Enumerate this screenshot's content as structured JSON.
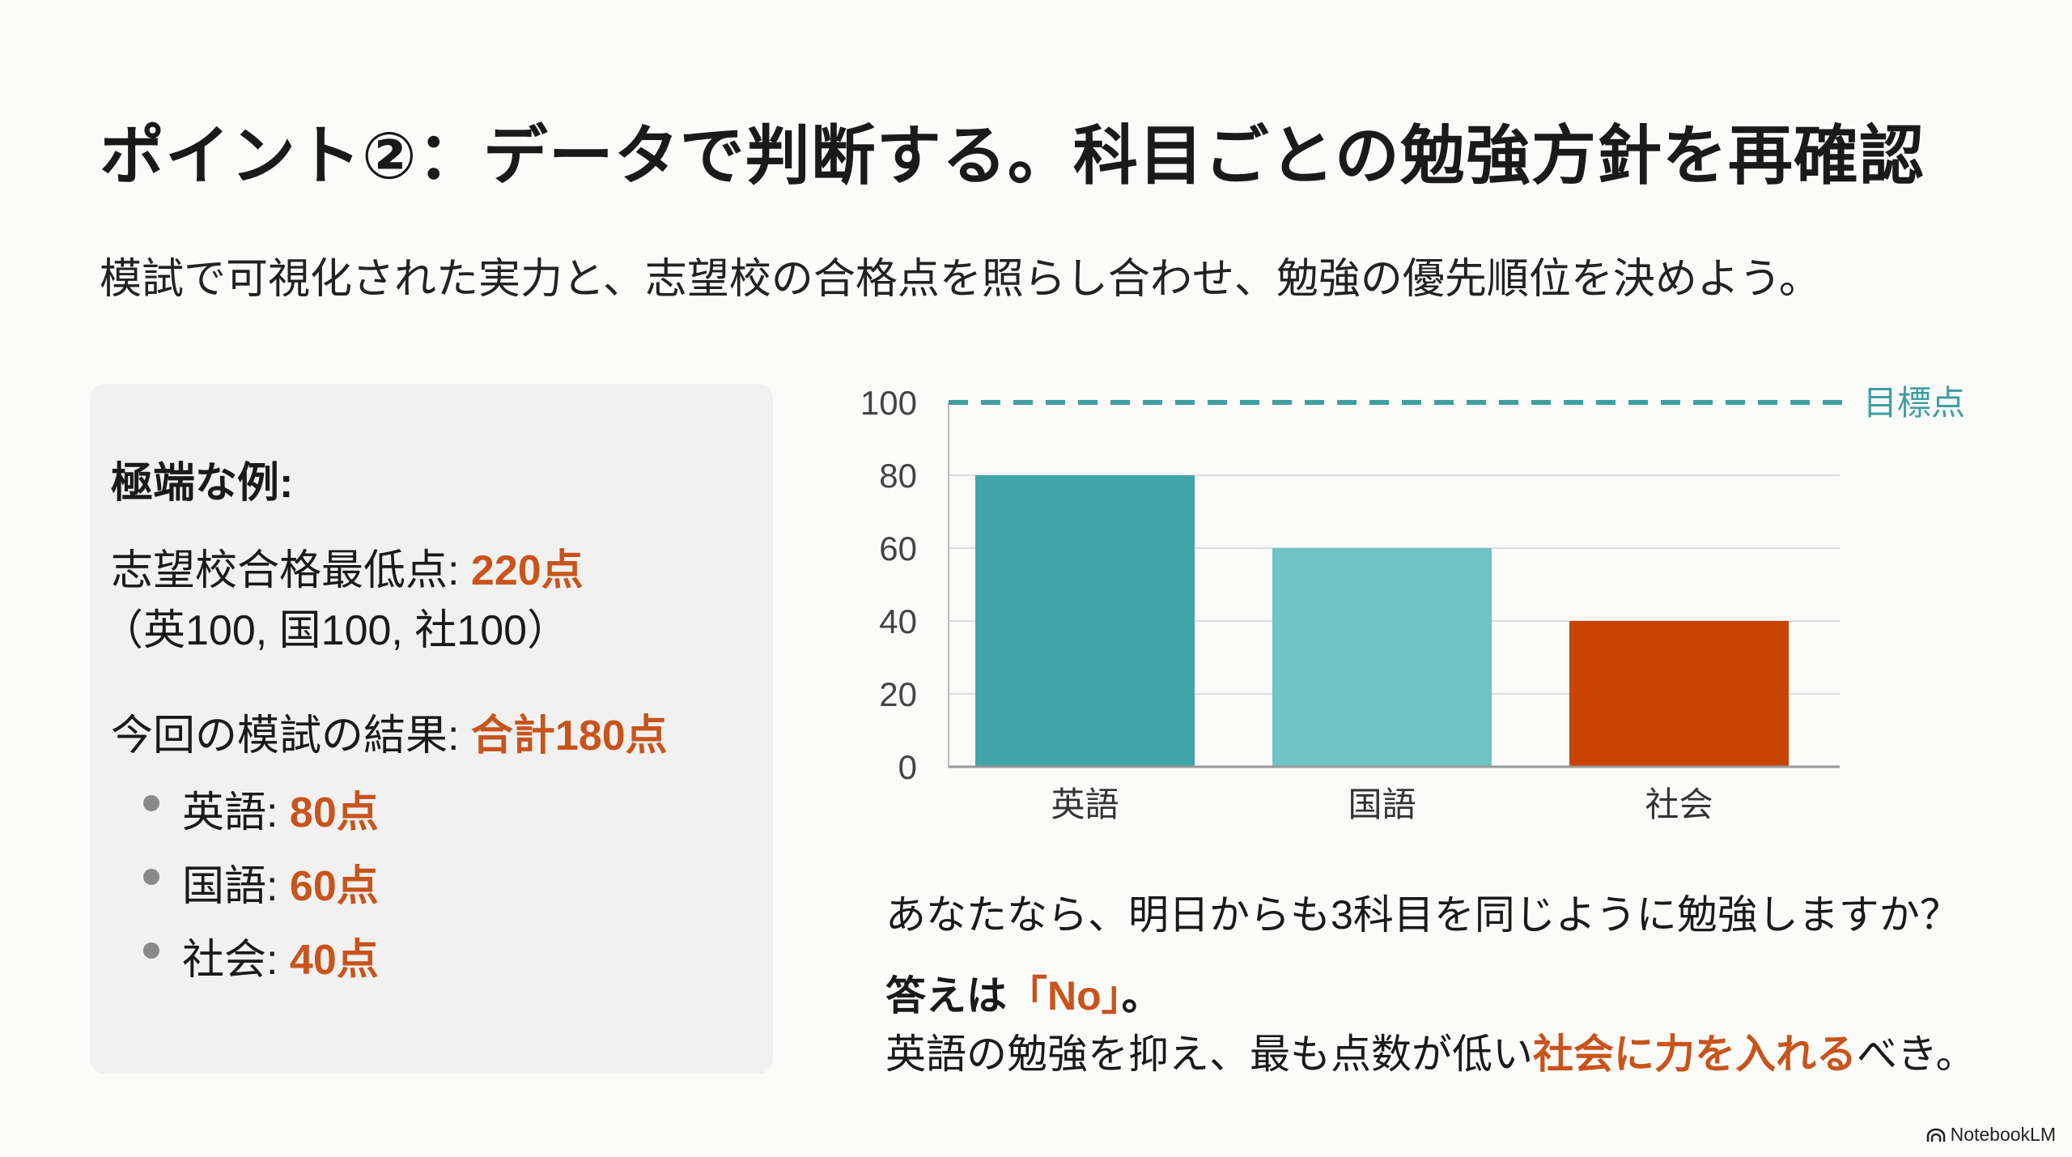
{
  "header": {
    "title": "ポイント②：データで判断する。科目ごとの勉強方針を再確認",
    "subtitle": "模試で可視化された実力と、志望校の合格点を照らし合わせ、勉強の優先順位を決めよう。"
  },
  "panel": {
    "heading": "極端な例:",
    "min_score_label": "志望校合格最低点: ",
    "min_score_value": "220点",
    "breakdown": "（英100, 国100, 社100）",
    "result_label": "今回の模試の結果: ",
    "result_value": "合計180点",
    "items": [
      {
        "label": "英語: ",
        "value": "80点"
      },
      {
        "label": "国語: ",
        "value": "60点"
      },
      {
        "label": "社会: ",
        "value": "40点"
      }
    ]
  },
  "chart_data": {
    "type": "bar",
    "categories": [
      "英語",
      "国語",
      "社会"
    ],
    "values": [
      80,
      60,
      40
    ],
    "colors": [
      "#41a6a9",
      "#6fc3c2",
      "#c94301"
    ],
    "ylim": [
      0,
      100
    ],
    "yticks": [
      0,
      20,
      40,
      60,
      80,
      100
    ],
    "target": {
      "value": 100,
      "label": "目標点",
      "color": "#3f9fa0"
    },
    "grid": true
  },
  "conclusion": {
    "question": "あなたなら、明日からも3科目を同じように勉強しますか？",
    "answer_prefix": "答えは",
    "answer_value": "「No」",
    "answer_suffix": "。",
    "advice_prefix": "英語の勉強を抑え、最も点数が低い",
    "advice_highlight": "社会に力を入れる",
    "advice_suffix": "べき。"
  },
  "watermark": {
    "label": "NotebookLM",
    "icon": "notebooklm-logo-icon"
  }
}
